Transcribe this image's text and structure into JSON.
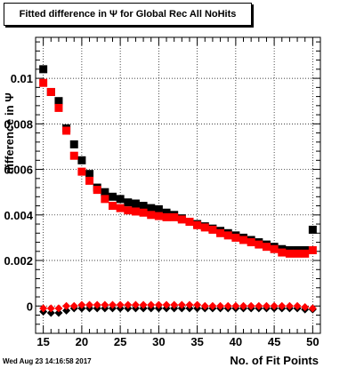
{
  "chart_data": {
    "type": "scatter",
    "title": "Fitted difference in  Ψ  for Global Rec All NoHits",
    "xlabel": "No. of Fit Points",
    "ylabel": "difference in  Ψ",
    "xlim": [
      14,
      51
    ],
    "ylim": [
      -0.0012,
      0.0118
    ],
    "x_ticks": [
      15,
      20,
      25,
      30,
      35,
      40,
      45,
      50
    ],
    "x_tick_labels": [
      "15",
      "20",
      "25",
      "30",
      "35",
      "40",
      "45",
      "50"
    ],
    "y_ticks": [
      0,
      0.002,
      0.004,
      0.006,
      0.008,
      0.01
    ],
    "y_tick_labels": [
      "0",
      "0.002",
      "0.004",
      "0.006",
      "0.008",
      "0.01"
    ],
    "grid": true,
    "timestamp": "Wed Aug 23 14:16:58 2017",
    "x": [
      15,
      16,
      17,
      18,
      19,
      20,
      21,
      22,
      23,
      24,
      25,
      26,
      27,
      28,
      29,
      30,
      31,
      32,
      33,
      34,
      35,
      36,
      37,
      38,
      39,
      40,
      41,
      42,
      43,
      44,
      45,
      46,
      47,
      48,
      49,
      50
    ],
    "series": [
      {
        "color": "#000000",
        "marker": "square",
        "values": [
          0.0104,
          0.0094,
          0.009,
          0.0078,
          0.0071,
          0.0064,
          0.0058,
          0.0052,
          0.005,
          0.0048,
          0.0047,
          0.00455,
          0.0045,
          0.0044,
          0.0043,
          0.00425,
          0.0041,
          0.004,
          0.00385,
          0.0037,
          0.0036,
          0.0035,
          0.0034,
          0.0033,
          0.0032,
          0.0031,
          0.003,
          0.0029,
          0.0028,
          0.0027,
          0.0026,
          0.0025,
          0.00245,
          0.00245,
          0.00245,
          0.00335
        ]
      },
      {
        "color": "#ff0000",
        "marker": "square",
        "values": [
          0.0098,
          0.0094,
          0.0087,
          0.0077,
          0.0066,
          0.0059,
          0.0055,
          0.0051,
          0.0047,
          0.0044,
          0.0043,
          0.0042,
          0.00415,
          0.0041,
          0.004,
          0.00395,
          0.0039,
          0.0039,
          0.0038,
          0.0037,
          0.00355,
          0.00345,
          0.00335,
          0.0032,
          0.0031,
          0.003,
          0.0029,
          0.0028,
          0.0027,
          0.0026,
          0.0025,
          0.00235,
          0.0023,
          0.0023,
          0.0023,
          0.00245
        ]
      },
      {
        "color": "#000000",
        "marker": "diamond",
        "values": [
          -0.00025,
          -0.0003,
          -0.0003,
          -0.0002,
          -0.0001,
          -0.0001,
          -0.0001,
          -0.0001,
          -0.0001,
          -0.0001,
          -0.0001,
          -0.0001,
          -0.0001,
          -0.0001,
          -0.0001,
          -0.0001,
          -0.0001,
          -0.0001,
          -0.0001,
          -0.0001,
          -0.0001,
          -0.0001,
          -0.0001,
          -0.0001,
          -0.0001,
          -0.0001,
          -0.0001,
          -0.0001,
          -0.0001,
          -0.0001,
          -0.0001,
          -0.0001,
          -0.0001,
          -0.0001,
          -0.00015,
          -0.00015
        ]
      },
      {
        "color": "#ff0000",
        "marker": "diamond",
        "values": [
          -0.0001,
          -0.0001,
          -0.0001,
          0.0,
          0.0,
          5e-05,
          5e-05,
          5e-05,
          5e-05,
          5e-05,
          5e-05,
          5e-05,
          5e-05,
          5e-05,
          5e-05,
          5e-05,
          5e-05,
          5e-05,
          5e-05,
          5e-05,
          5e-05,
          0.0,
          0.0,
          0.0,
          0.0,
          0.0,
          0.0,
          0.0,
          0.0,
          0.0,
          0.0,
          0.0,
          0.0,
          0.0,
          -5e-05,
          -0.0001
        ]
      }
    ]
  }
}
